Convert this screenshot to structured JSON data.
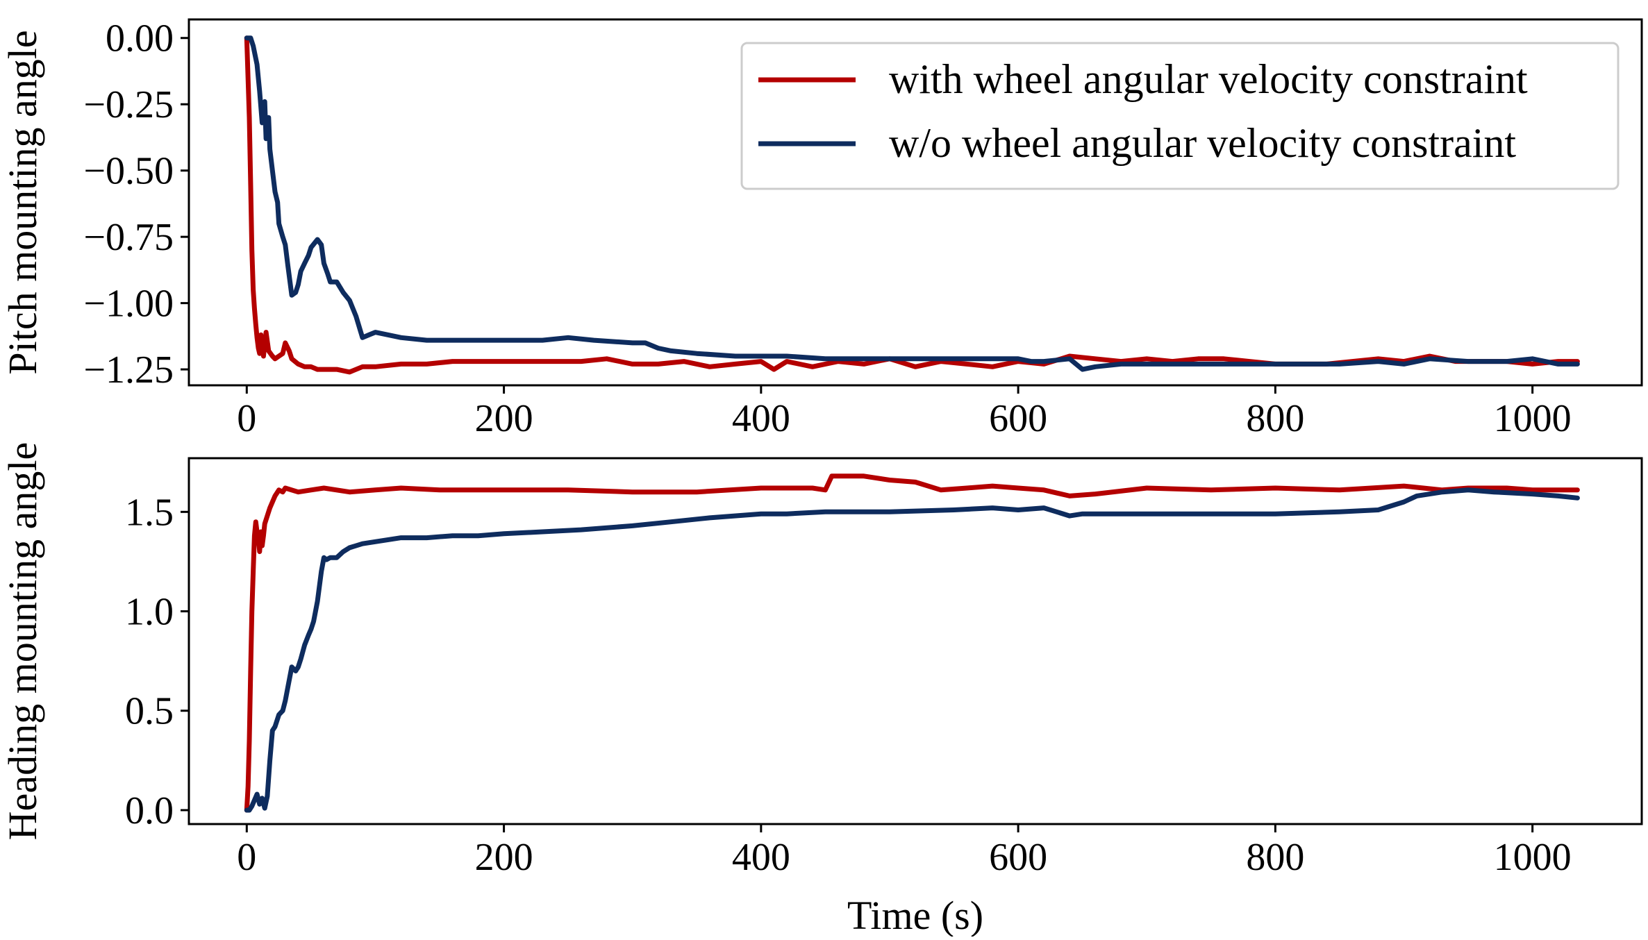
{
  "colors": {
    "with": "#b40000",
    "without": "#0e2c5e"
  },
  "legend": {
    "placement": "top-right",
    "entries": [
      {
        "label": "with wheel angular velocity constraint",
        "color_key": "with"
      },
      {
        "label": "w/o wheel angular velocity constraint",
        "color_key": "without"
      }
    ]
  },
  "chart_data": [
    {
      "type": "line",
      "title": "",
      "xlabel": "",
      "ylabel": "Pitch mounting angle",
      "xlim": [
        -45,
        1085
      ],
      "ylim": [
        -1.31,
        0.07
      ],
      "xticks": [
        0,
        200,
        400,
        600,
        800,
        1000
      ],
      "xtick_labels": [
        "0",
        "200",
        "400",
        "600",
        "800",
        "1000"
      ],
      "yticks": [
        0.0,
        -0.25,
        -0.5,
        -0.75,
        -1.0,
        -1.25
      ],
      "ytick_labels": [
        "0.00",
        "−0.25",
        "−0.50",
        "−0.75",
        "−1.00",
        "−1.25"
      ],
      "grid": false,
      "legend": true,
      "series": [
        {
          "name": "with wheel angular velocity constraint",
          "color_key": "with",
          "x": [
            0,
            2,
            3,
            4,
            5,
            6,
            7,
            8,
            9,
            10,
            11,
            12,
            13,
            15,
            17,
            20,
            22,
            25,
            28,
            30,
            33,
            35,
            40,
            45,
            50,
            55,
            60,
            70,
            80,
            90,
            100,
            120,
            140,
            160,
            180,
            200,
            230,
            260,
            280,
            300,
            320,
            340,
            360,
            380,
            400,
            410,
            420,
            440,
            460,
            480,
            500,
            520,
            540,
            560,
            580,
            600,
            620,
            640,
            660,
            680,
            700,
            720,
            740,
            760,
            780,
            800,
            820,
            840,
            860,
            880,
            900,
            920,
            940,
            960,
            980,
            1000,
            1020,
            1035
          ],
          "y": [
            0.0,
            -0.3,
            -0.55,
            -0.8,
            -0.95,
            -1.02,
            -1.08,
            -1.13,
            -1.17,
            -1.19,
            -1.12,
            -1.16,
            -1.2,
            -1.11,
            -1.18,
            -1.2,
            -1.21,
            -1.2,
            -1.19,
            -1.15,
            -1.18,
            -1.21,
            -1.23,
            -1.24,
            -1.24,
            -1.25,
            -1.25,
            -1.25,
            -1.26,
            -1.24,
            -1.24,
            -1.23,
            -1.23,
            -1.22,
            -1.22,
            -1.22,
            -1.22,
            -1.22,
            -1.21,
            -1.23,
            -1.23,
            -1.22,
            -1.24,
            -1.23,
            -1.22,
            -1.25,
            -1.22,
            -1.24,
            -1.22,
            -1.23,
            -1.21,
            -1.24,
            -1.22,
            -1.23,
            -1.24,
            -1.22,
            -1.23,
            -1.2,
            -1.21,
            -1.22,
            -1.21,
            -1.22,
            -1.21,
            -1.21,
            -1.22,
            -1.23,
            -1.23,
            -1.23,
            -1.22,
            -1.21,
            -1.22,
            -1.2,
            -1.22,
            -1.22,
            -1.22,
            -1.23,
            -1.22,
            -1.22
          ]
        },
        {
          "name": "w/o wheel angular velocity constraint",
          "color_key": "without",
          "x": [
            0,
            3,
            5,
            8,
            10,
            12,
            14,
            15,
            17,
            18,
            20,
            22,
            24,
            25,
            28,
            30,
            32,
            35,
            38,
            40,
            42,
            45,
            48,
            50,
            55,
            58,
            60,
            63,
            65,
            70,
            75,
            80,
            85,
            90,
            95,
            100,
            110,
            120,
            140,
            160,
            180,
            200,
            230,
            250,
            270,
            300,
            310,
            320,
            330,
            350,
            380,
            400,
            420,
            450,
            480,
            500,
            520,
            550,
            580,
            600,
            610,
            620,
            640,
            650,
            660,
            680,
            700,
            730,
            760,
            800,
            850,
            880,
            900,
            920,
            950,
            980,
            1000,
            1020,
            1035
          ],
          "y": [
            0.0,
            0.0,
            -0.03,
            -0.1,
            -0.2,
            -0.32,
            -0.24,
            -0.38,
            -0.3,
            -0.42,
            -0.5,
            -0.58,
            -0.62,
            -0.7,
            -0.75,
            -0.78,
            -0.86,
            -0.97,
            -0.96,
            -0.93,
            -0.88,
            -0.85,
            -0.82,
            -0.79,
            -0.76,
            -0.78,
            -0.85,
            -0.89,
            -0.92,
            -0.92,
            -0.96,
            -0.99,
            -1.05,
            -1.13,
            -1.12,
            -1.11,
            -1.12,
            -1.13,
            -1.14,
            -1.14,
            -1.14,
            -1.14,
            -1.14,
            -1.13,
            -1.14,
            -1.15,
            -1.15,
            -1.17,
            -1.18,
            -1.19,
            -1.2,
            -1.2,
            -1.2,
            -1.21,
            -1.21,
            -1.21,
            -1.21,
            -1.21,
            -1.21,
            -1.21,
            -1.22,
            -1.22,
            -1.21,
            -1.25,
            -1.24,
            -1.23,
            -1.23,
            -1.23,
            -1.23,
            -1.23,
            -1.23,
            -1.22,
            -1.23,
            -1.21,
            -1.22,
            -1.22,
            -1.21,
            -1.23,
            -1.23
          ]
        }
      ]
    },
    {
      "type": "line",
      "title": "",
      "xlabel": "Time (s)",
      "ylabel": "Heading mounting angle",
      "xlim": [
        -45,
        1085
      ],
      "ylim": [
        -0.07,
        1.77
      ],
      "xticks": [
        0,
        200,
        400,
        600,
        800,
        1000
      ],
      "xtick_labels": [
        "0",
        "200",
        "400",
        "600",
        "800",
        "1000"
      ],
      "yticks": [
        0.0,
        0.5,
        1.0,
        1.5
      ],
      "ytick_labels": [
        "0.0",
        "0.5",
        "1.0",
        "1.5"
      ],
      "grid": false,
      "legend": false,
      "series": [
        {
          "name": "with wheel angular velocity constraint",
          "color_key": "with",
          "x": [
            0,
            1,
            2,
            3,
            4,
            5,
            6,
            7,
            8,
            9,
            10,
            11,
            12,
            13,
            14,
            16,
            18,
            20,
            22,
            25,
            28,
            30,
            40,
            50,
            60,
            80,
            100,
            120,
            150,
            200,
            250,
            300,
            350,
            400,
            420,
            440,
            450,
            455,
            460,
            480,
            500,
            520,
            540,
            560,
            580,
            600,
            620,
            640,
            660,
            700,
            750,
            800,
            850,
            900,
            930,
            950,
            980,
            1000,
            1035
          ],
          "y": [
            0.0,
            0.12,
            0.35,
            0.7,
            1.0,
            1.2,
            1.38,
            1.45,
            1.4,
            1.37,
            1.3,
            1.4,
            1.33,
            1.38,
            1.44,
            1.48,
            1.52,
            1.55,
            1.58,
            1.61,
            1.6,
            1.62,
            1.6,
            1.61,
            1.62,
            1.6,
            1.61,
            1.62,
            1.61,
            1.61,
            1.61,
            1.6,
            1.6,
            1.62,
            1.62,
            1.62,
            1.61,
            1.68,
            1.68,
            1.68,
            1.66,
            1.65,
            1.61,
            1.62,
            1.63,
            1.62,
            1.61,
            1.58,
            1.59,
            1.62,
            1.61,
            1.62,
            1.61,
            1.63,
            1.61,
            1.62,
            1.62,
            1.61,
            1.61
          ]
        },
        {
          "name": "w/o wheel angular velocity constraint",
          "color_key": "without",
          "x": [
            0,
            2,
            4,
            6,
            8,
            10,
            12,
            14,
            16,
            18,
            20,
            22,
            25,
            28,
            30,
            32,
            35,
            38,
            40,
            42,
            45,
            48,
            50,
            52,
            55,
            58,
            60,
            62,
            65,
            70,
            75,
            80,
            90,
            100,
            110,
            120,
            140,
            160,
            180,
            200,
            230,
            260,
            300,
            330,
            360,
            400,
            420,
            450,
            480,
            500,
            550,
            580,
            600,
            620,
            630,
            640,
            650,
            700,
            750,
            800,
            850,
            880,
            900,
            910,
            930,
            950,
            970,
            1000,
            1020,
            1035
          ],
          "y": [
            0.0,
            0.0,
            0.02,
            0.05,
            0.08,
            0.03,
            0.06,
            0.01,
            0.07,
            0.25,
            0.4,
            0.42,
            0.48,
            0.5,
            0.55,
            0.62,
            0.72,
            0.7,
            0.72,
            0.76,
            0.83,
            0.88,
            0.91,
            0.95,
            1.05,
            1.2,
            1.27,
            1.26,
            1.27,
            1.27,
            1.3,
            1.32,
            1.34,
            1.35,
            1.36,
            1.37,
            1.37,
            1.38,
            1.38,
            1.39,
            1.4,
            1.41,
            1.43,
            1.45,
            1.47,
            1.49,
            1.49,
            1.5,
            1.5,
            1.5,
            1.51,
            1.52,
            1.51,
            1.52,
            1.5,
            1.48,
            1.49,
            1.49,
            1.49,
            1.49,
            1.5,
            1.51,
            1.55,
            1.58,
            1.6,
            1.61,
            1.6,
            1.59,
            1.58,
            1.57
          ]
        }
      ]
    }
  ]
}
